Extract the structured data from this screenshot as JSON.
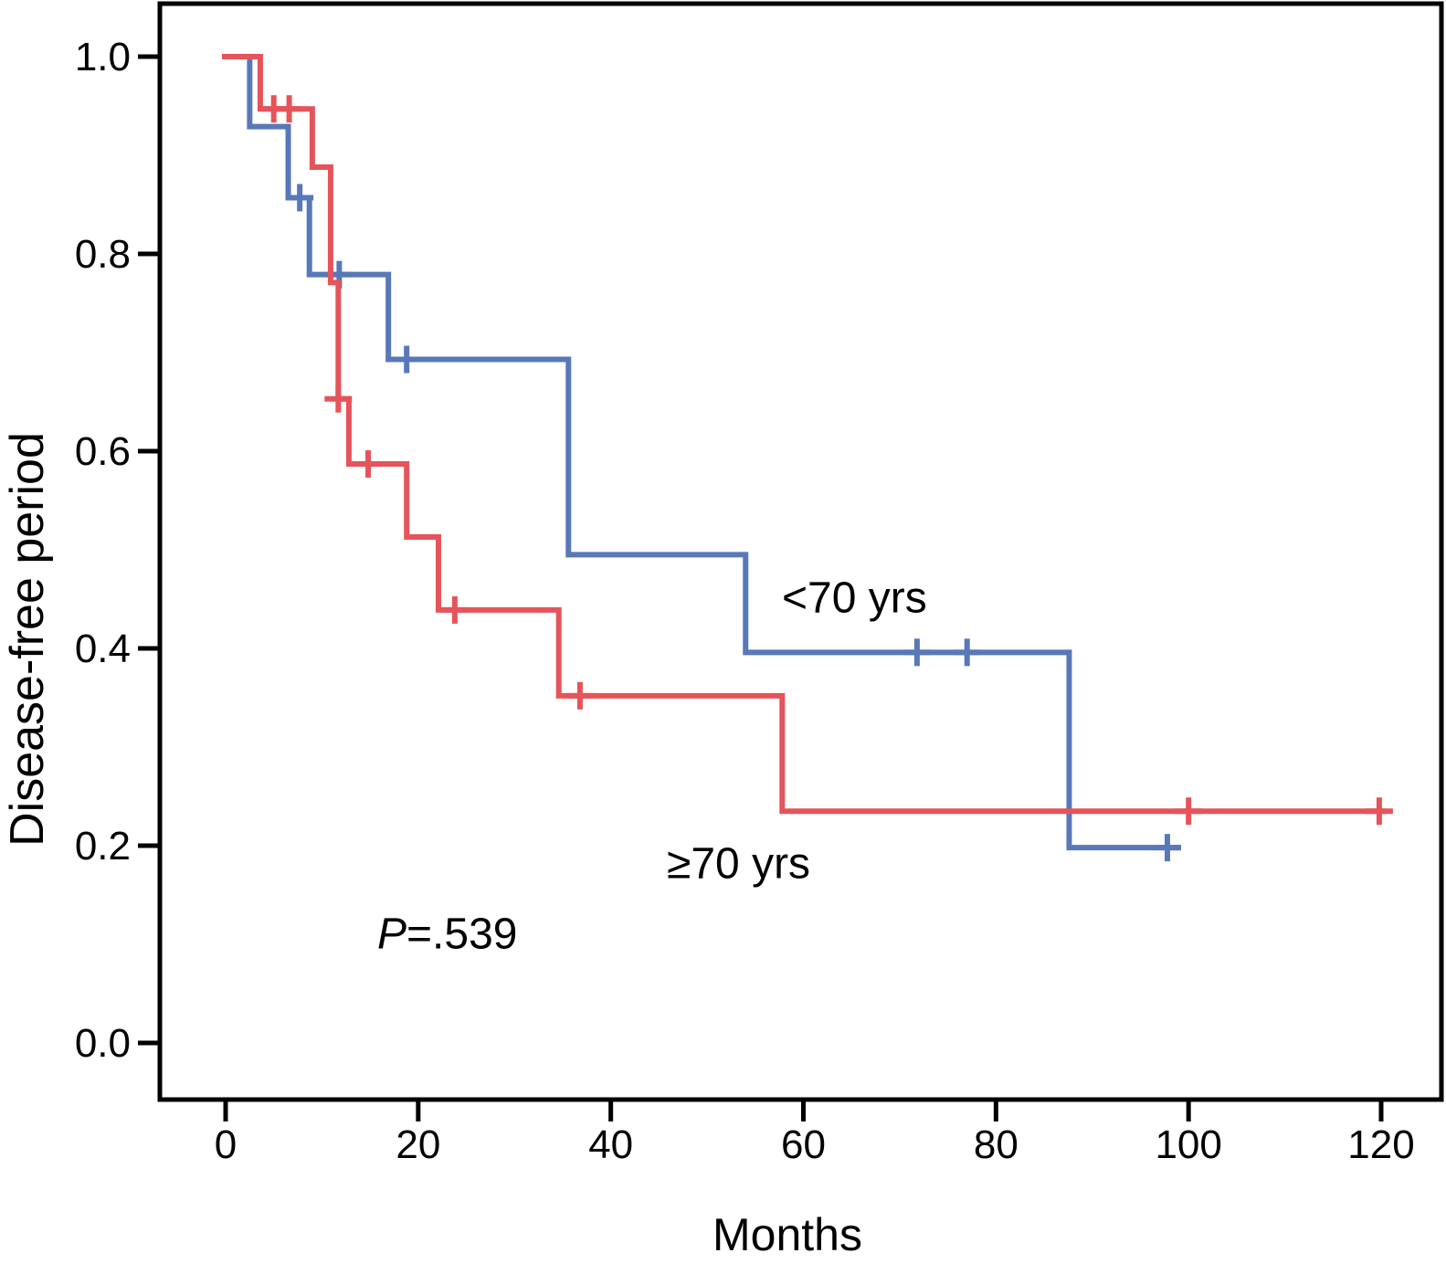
{
  "chart_data": {
    "type": "line",
    "subtype": "kaplan-meier-step-curves",
    "title": "",
    "xlabel": "Months",
    "ylabel": "Disease-free period",
    "xlim": [
      0,
      120
    ],
    "ylim": [
      0.0,
      1.0
    ],
    "grid": false,
    "legend_position": "inline-annotations",
    "x_ticks": [
      {
        "label": "0",
        "t": 0
      },
      {
        "label": "20",
        "t": 20
      },
      {
        "label": "40",
        "t": 40
      },
      {
        "label": "60",
        "t": 60
      },
      {
        "label": "80",
        "t": 80
      },
      {
        "label": "100",
        "t": 100
      },
      {
        "label": "120",
        "t": 120
      }
    ],
    "y_ticks": [
      {
        "label": "1.0",
        "v": 1.0
      },
      {
        "label": "0.8",
        "v": 0.8
      },
      {
        "label": "0.6",
        "v": 0.6
      },
      {
        "label": "0.4",
        "v": 0.4
      },
      {
        "label": "0.2",
        "v": 0.2
      },
      {
        "label": "0.0",
        "v": 0.0
      }
    ],
    "p_value": {
      "italic": "P",
      "rest": "=.539"
    },
    "series": [
      {
        "name": "<70 yrs",
        "label_text": "<70 yrs",
        "color": "#5878b8",
        "start": {
          "t": 0,
          "s": 1.0
        },
        "steps": [
          {
            "t": 2.5,
            "s": 0.929
          },
          {
            "t": 6.5,
            "s": 0.857
          },
          {
            "t": 8.7,
            "s": 0.779
          },
          {
            "t": 16.9,
            "s": 0.693
          },
          {
            "t": 35.6,
            "s": 0.495
          },
          {
            "t": 54.0,
            "s": 0.396
          },
          {
            "t": 87.6,
            "s": 0.198
          }
        ],
        "end_t": 99.2,
        "censors": [
          {
            "t": 7.7,
            "s": 0.857
          },
          {
            "t": 11.8,
            "s": 0.779
          },
          {
            "t": 18.8,
            "s": 0.693
          },
          {
            "t": 71.8,
            "s": 0.396
          },
          {
            "t": 77.0,
            "s": 0.396
          },
          {
            "t": 97.8,
            "s": 0.198
          }
        ]
      },
      {
        "name": "≥70 yrs",
        "label_text": "≥70 yrs",
        "color": "#e5545a",
        "start": {
          "t": 0,
          "s": 1.0
        },
        "steps": [
          {
            "t": 3.6,
            "s": 0.947
          },
          {
            "t": 9.0,
            "s": 0.888
          },
          {
            "t": 10.9,
            "s": 0.771
          },
          {
            "t": 11.7,
            "s": 0.653
          },
          {
            "t": 12.8,
            "s": 0.587
          },
          {
            "t": 18.8,
            "s": 0.513
          },
          {
            "t": 22.1,
            "s": 0.439
          },
          {
            "t": 34.6,
            "s": 0.352
          },
          {
            "t": 57.8,
            "s": 0.235
          }
        ],
        "end_t": 120.5,
        "censors": [
          {
            "t": 5.0,
            "s": 0.947
          },
          {
            "t": 6.6,
            "s": 0.947
          },
          {
            "t": 11.7,
            "s": 0.653
          },
          {
            "t": 14.8,
            "s": 0.587
          },
          {
            "t": 23.8,
            "s": 0.439
          },
          {
            "t": 36.8,
            "s": 0.352
          },
          {
            "t": 100.0,
            "s": 0.235
          },
          {
            "t": 119.8,
            "s": 0.235
          }
        ]
      }
    ],
    "axis_color": "#000000"
  }
}
